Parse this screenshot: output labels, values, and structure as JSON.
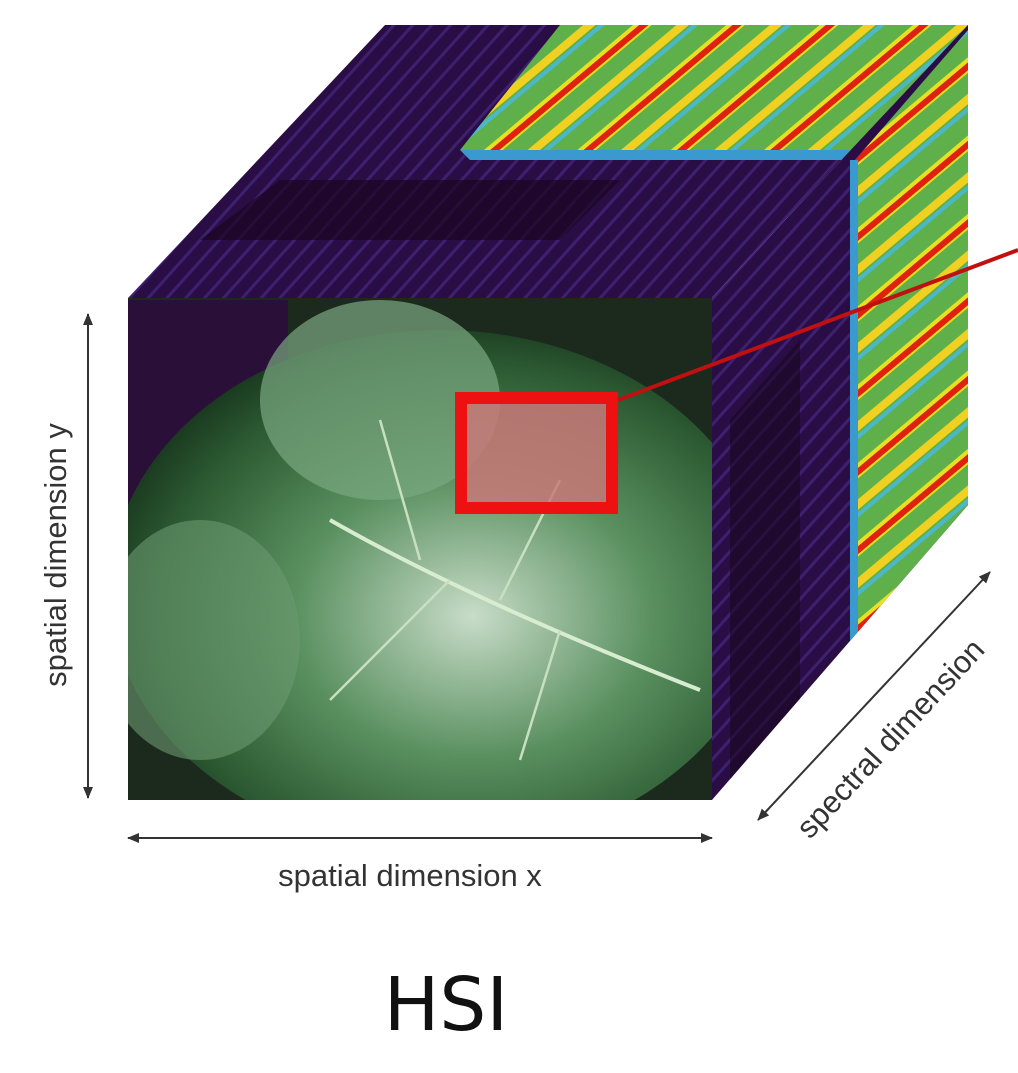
{
  "labels": {
    "y_axis": "spatial dimension y",
    "x_axis": "spatial dimension x",
    "spectral_axis": "spectral dimension"
  },
  "caption": "HSI"
}
